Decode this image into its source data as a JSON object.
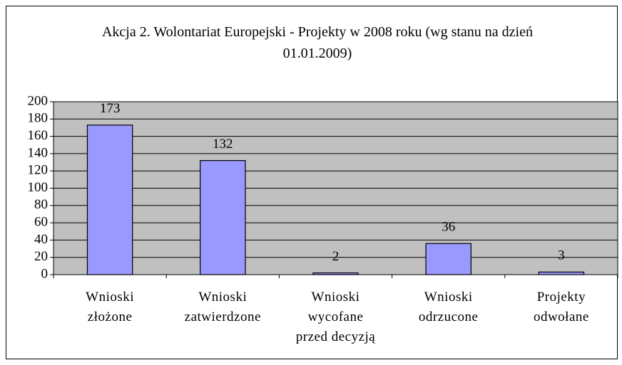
{
  "chart_data": {
    "type": "bar",
    "title": "Akcja 2. Wolontariat Europejski - Projekty w 2008 roku (wg stanu na dzień 01.01.2009)",
    "categories": [
      "Wnioski złożone",
      "Wnioski zatwierdzone",
      "Wnioski wycofane przed decyzją",
      "Wnioski odrzucone",
      "Projekty odwołane"
    ],
    "values": [
      173,
      132,
      2,
      36,
      3
    ],
    "color": "#9999ff",
    "ylim": [
      0,
      200
    ],
    "yticks": [
      0,
      20,
      40,
      60,
      80,
      100,
      120,
      140,
      160,
      180,
      200
    ],
    "grid": true
  }
}
